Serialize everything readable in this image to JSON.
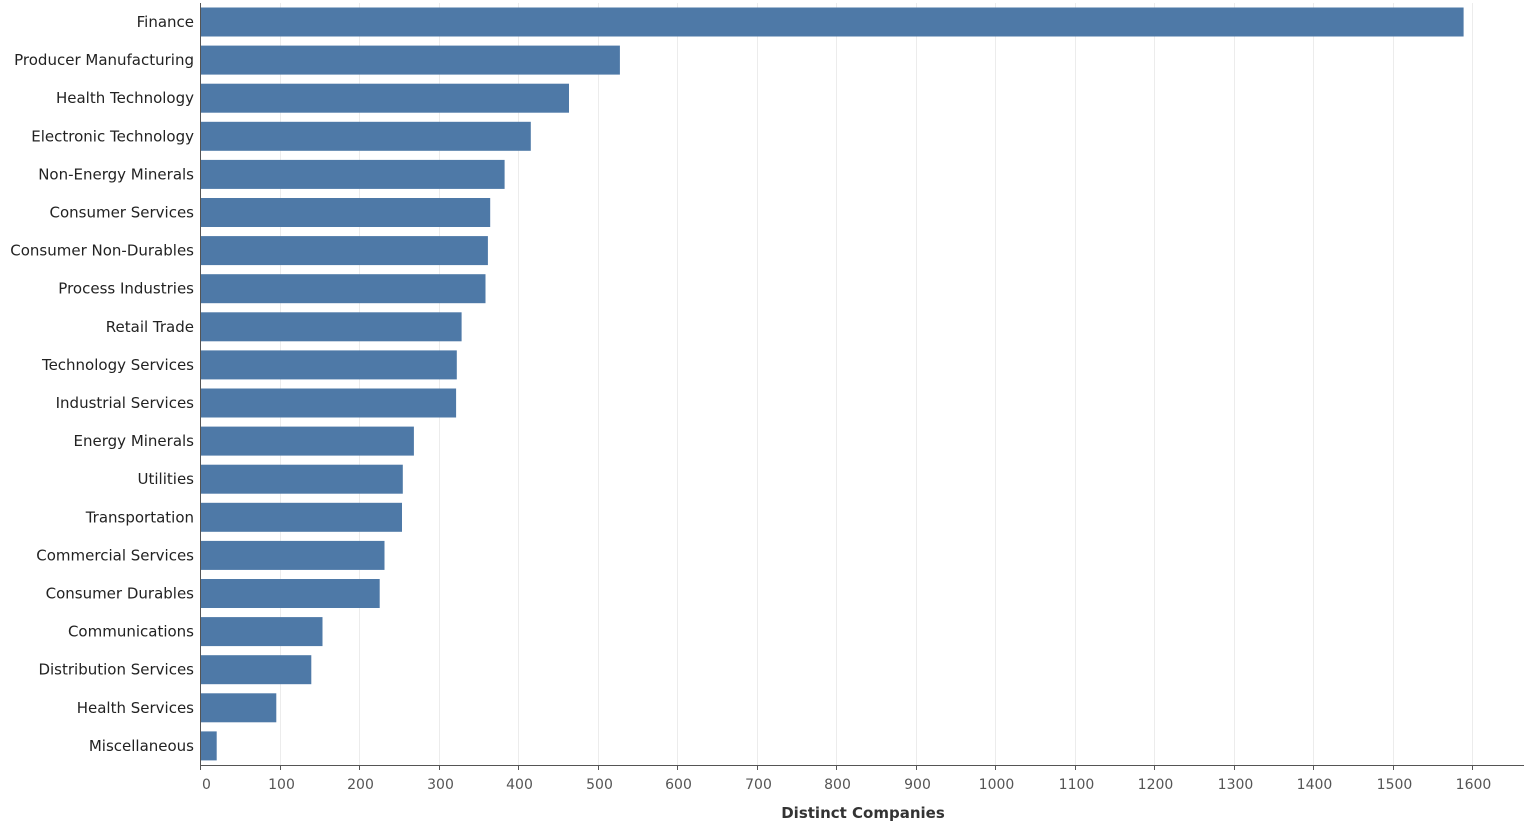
{
  "chart_data": {
    "type": "bar",
    "orientation": "horizontal",
    "categories": [
      "Finance",
      "Producer Manufacturing",
      "Health Technology",
      "Electronic Technology",
      "Non-Energy Minerals",
      "Consumer Services",
      "Consumer Non-Durables",
      "Process Industries",
      "Retail Trade",
      "Technology Services",
      "Industrial Services",
      "Energy Minerals",
      "Utilities",
      "Transportation",
      "Commercial Services",
      "Consumer Durables",
      "Communications",
      "Distribution Services",
      "Health Services",
      "Miscellaneous"
    ],
    "values": [
      1589,
      528,
      464,
      416,
      383,
      365,
      362,
      359,
      329,
      323,
      322,
      269,
      255,
      254,
      232,
      226,
      154,
      140,
      96,
      21
    ],
    "xlabel": "Distinct Companies",
    "ylabel": "",
    "xlim": [
      0,
      1665
    ],
    "xticks": [
      0,
      100,
      200,
      300,
      400,
      500,
      600,
      700,
      800,
      900,
      1000,
      1100,
      1200,
      1300,
      1400,
      1500,
      1600
    ],
    "grid": "vertical",
    "bar_color": "#4e79a7"
  }
}
